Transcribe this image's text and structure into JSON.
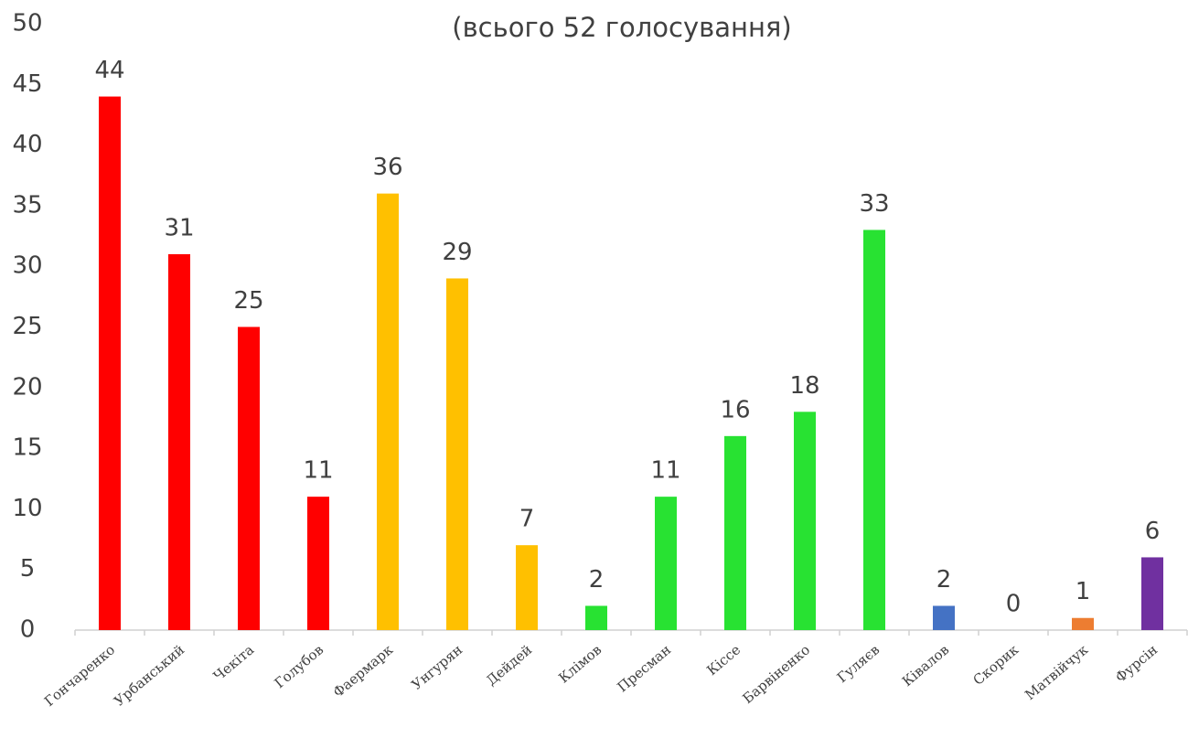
{
  "chart_data": {
    "type": "bar",
    "title": "(всього 52 голосування)",
    "categories": [
      "Гончаренко",
      "Урбанський",
      "Чекіта",
      "Голубов",
      "Фаермарк",
      "Унгурян",
      "Дейдей",
      "Клімов",
      "Пресман",
      "Кіссе",
      "Барвіненко",
      "Гуляєв",
      "Ківалов",
      "Скорик",
      "Матвійчук",
      "Фурсін"
    ],
    "values": [
      44,
      31,
      25,
      11,
      36,
      29,
      7,
      2,
      11,
      16,
      18,
      33,
      2,
      0,
      1,
      6
    ],
    "colors": [
      "#ff0000",
      "#ff0000",
      "#ff0000",
      "#ff0000",
      "#ffc000",
      "#ffc000",
      "#ffc000",
      "#28e232",
      "#28e232",
      "#28e232",
      "#28e232",
      "#28e232",
      "#4472c4",
      null,
      "#ed7d31",
      "#7030a0"
    ],
    "ylim": [
      0,
      50
    ],
    "yticks": [
      0,
      5,
      10,
      15,
      20,
      25,
      30,
      35,
      40,
      45,
      50
    ],
    "grid": false
  }
}
